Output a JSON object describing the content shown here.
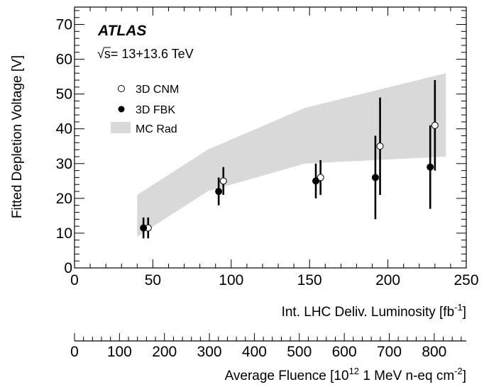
{
  "chart_data": {
    "type": "scatter",
    "experiment_label": "ATLAS",
    "energy_label": "s= 13+13.6 TeV",
    "energy_sqrt": "√",
    "xlabel": "Int. LHC Deliv. Luminosity [fb",
    "xlabel_sup": "-1",
    "xlabel_end": "]",
    "ylabel": "Fitted Depletion Voltage [V]",
    "xlim": [
      0,
      250
    ],
    "ylim": [
      0,
      75
    ],
    "x_ticks": [
      0,
      50,
      100,
      150,
      200,
      250
    ],
    "y_ticks": [
      0,
      10,
      20,
      30,
      40,
      50,
      60,
      70
    ],
    "secondary_x_axis": {
      "label": "Average Fluence [10",
      "label_sup1": "12",
      "label_mid": " 1 MeV n-eq cm",
      "label_sup2": "-2",
      "label_end": "]",
      "fluence_per_fb": 3.485,
      "ticks": [
        0,
        100,
        200,
        300,
        400,
        500,
        600,
        700,
        800
      ]
    },
    "legend_position": "top-left",
    "series": [
      {
        "name": "3D CNM",
        "marker": "open-circle",
        "points": [
          {
            "x": 47,
            "y": 11.5,
            "err": 3
          },
          {
            "x": 95,
            "y": 25,
            "err": 4
          },
          {
            "x": 157,
            "y": 26,
            "err": 5
          },
          {
            "x": 195,
            "y": 35,
            "err": 14
          },
          {
            "x": 230,
            "y": 41,
            "err": 13
          }
        ]
      },
      {
        "name": "3D FBK",
        "marker": "filled-circle",
        "points": [
          {
            "x": 44,
            "y": 11.5,
            "err": 3
          },
          {
            "x": 92,
            "y": 22,
            "err": 4
          },
          {
            "x": 154,
            "y": 25,
            "err": 5
          },
          {
            "x": 192,
            "y": 26,
            "err": 12
          },
          {
            "x": 227,
            "y": 29,
            "err": 12
          }
        ]
      }
    ],
    "band": {
      "name": "MC Rad",
      "color": "#d9d9d9",
      "upper": [
        [
          40,
          21
        ],
        [
          85,
          34
        ],
        [
          147,
          46
        ],
        [
          237,
          56
        ]
      ],
      "lower": [
        [
          40,
          9
        ],
        [
          85,
          22
        ],
        [
          147,
          30
        ],
        [
          237,
          32
        ]
      ]
    }
  }
}
